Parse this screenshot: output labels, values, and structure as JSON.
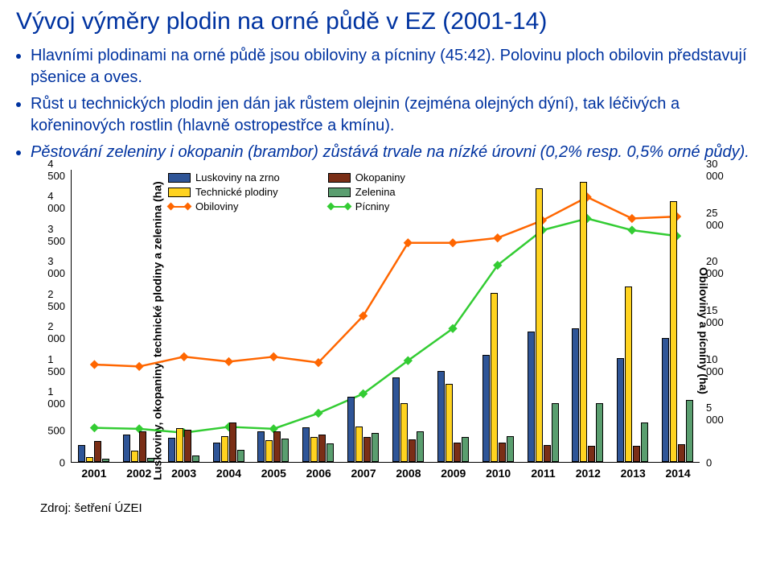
{
  "title": "Vývoj výměry plodin na orné půdě v EZ (2001-14)",
  "bullets": [
    {
      "text": "Hlavními plodinami na orné půdě jsou obiloviny a pícniny (45:42). Polovinu ploch obilovin představují pšenice a oves.",
      "italic": false
    },
    {
      "text": "Růst u technických plodin jen dán jak růstem olejnin (zejména olejných dýní), tak léčivých a kořeninových rostlin (hlavně ostropestřce a kmínu).",
      "italic": false
    },
    {
      "text": "Pěstování zeleniny i okopanin (brambor) zůstává trvale na nízké úrovni (0,2% resp. 0,5% orné půdy).",
      "italic": true
    }
  ],
  "y_left": {
    "label": "Luskoviny, okopaniny, technické plodiny a zelenina (ha)",
    "max": 4500,
    "step": 500
  },
  "y_right": {
    "label": "Obiloviny a pícniny (ha)",
    "max": 30000,
    "step": 5000
  },
  "years": [
    "2001",
    "2002",
    "2003",
    "2004",
    "2005",
    "2006",
    "2007",
    "2008",
    "2009",
    "2010",
    "2011",
    "2012",
    "2013",
    "2014"
  ],
  "legend": {
    "col1": [
      {
        "label": "Luskoviny na zrno",
        "color": "#2f5597",
        "type": "box"
      },
      {
        "label": "Technické plodiny",
        "color": "#ffd320",
        "type": "box"
      },
      {
        "label": "Obiloviny",
        "color": "#ff6600",
        "type": "line"
      }
    ],
    "col2": [
      {
        "label": "Okopaniny",
        "color": "#7a2e16",
        "type": "box"
      },
      {
        "label": "Zelenina",
        "color": "#5a9e6f",
        "type": "box"
      },
      {
        "label": "Pícniny",
        "color": "#33cc33",
        "type": "line"
      }
    ]
  },
  "bars": {
    "luskoviny": [
      260,
      420,
      370,
      300,
      470,
      530,
      1000,
      1300,
      1400,
      1650,
      2000,
      2050,
      1600,
      1900
    ],
    "technicke": [
      80,
      170,
      520,
      400,
      330,
      380,
      550,
      900,
      1200,
      2600,
      4200,
      4300,
      2700,
      4000
    ],
    "okopaniny": [
      320,
      470,
      500,
      600,
      470,
      420,
      380,
      350,
      300,
      300,
      260,
      250,
      250,
      270
    ],
    "zelenina": [
      50,
      60,
      100,
      180,
      360,
      280,
      450,
      470,
      380,
      400,
      900,
      900,
      600,
      950
    ]
  },
  "lines": {
    "obiloviny": [
      10000,
      9800,
      10800,
      10300,
      10800,
      10200,
      15000,
      22500,
      22500,
      23000,
      24800,
      27200,
      25000,
      25200
    ],
    "picniny": [
      3500,
      3400,
      3000,
      3600,
      3400,
      5000,
      7000,
      10400,
      13700,
      20200,
      23800,
      25000,
      23800,
      23200
    ]
  },
  "colors": {
    "luskoviny": "#2f5597",
    "technicke": "#ffd320",
    "okopaniny": "#7a2e16",
    "zelenina": "#5a9e6f",
    "obiloviny": "#ff6600",
    "picniny": "#33cc33",
    "grid": "#888"
  },
  "source": "Zdroj: šetření ÚZEI"
}
